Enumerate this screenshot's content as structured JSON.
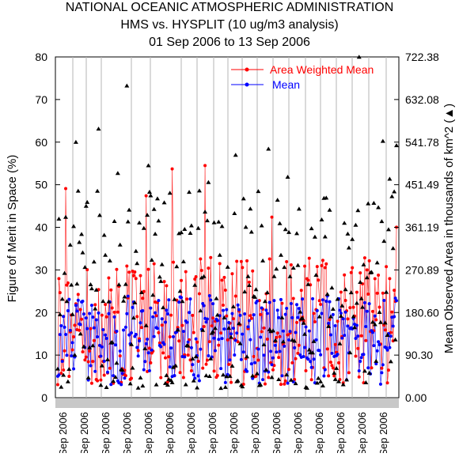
{
  "chart_data": {
    "type": "scatter",
    "title": [
      "NATIONAL OCEANIC ATMOSPHERIC ADMINISTRATION",
      "HMS vs. HYSPLIT (10 ug/m3 analysis)",
      "01 Sep 2006 to 13 Sep 2006"
    ],
    "ylabel": "Figure of Merit in Space (%)",
    "y2label": "Mean Observed Area in thousands of km^2 (▲)",
    "ylim": [
      0,
      80
    ],
    "y2lim": [
      0,
      722.38
    ],
    "y_ticks": [
      "0",
      "10",
      "20",
      "30",
      "40",
      "50",
      "60",
      "70",
      "80"
    ],
    "y2_ticks": [
      "0.00",
      "90.30",
      "180.60",
      "270.89",
      "361.19",
      "451.49",
      "541.78",
      "632.08",
      "722.38"
    ],
    "x_tick_label": "Sep 2006",
    "x_tick_count": 16,
    "legend_position": "top-right",
    "legend": [
      {
        "name": "Area Weighted Mean",
        "color": "#ff0000"
      },
      {
        "name": "Mean",
        "color": "#0000ff"
      }
    ],
    "n_points": 300,
    "series": [
      {
        "name": "Area Weighted Mean",
        "color": "#ff0000",
        "marker": "dot",
        "summary": {
          "typical_range": [
            3,
            35
          ],
          "max": 54.5,
          "min": 1
        }
      },
      {
        "name": "Mean",
        "color": "#0000ff",
        "marker": "dot",
        "summary": {
          "typical_range": [
            3,
            24
          ],
          "max": 24
        }
      },
      {
        "name": "Mean Observed Area",
        "color": "#000000",
        "marker": "triangle",
        "axis": "right",
        "summary": {
          "typical_range_thousand_km2": [
            20,
            550
          ],
          "max_thousand_km2": 722
        }
      }
    ],
    "grid": "vertical lines at selected dates"
  }
}
